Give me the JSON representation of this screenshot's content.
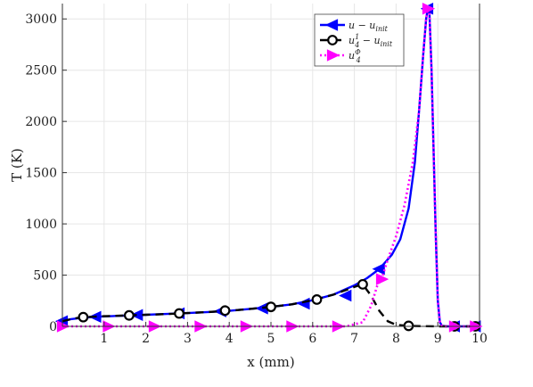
{
  "chart_data": {
    "type": "line",
    "title": "",
    "xlabel": "x (mm)",
    "ylabel": "T (K)",
    "xlim": [
      0,
      10
    ],
    "ylim": [
      0,
      3150
    ],
    "xticks": [
      0,
      1,
      2,
      3,
      4,
      5,
      6,
      7,
      8,
      9,
      10
    ],
    "yticks": [
      0,
      500,
      1000,
      1500,
      2000,
      2500,
      3000
    ],
    "xtick_labels": [
      "0",
      "1",
      "2",
      "3",
      "4",
      "5",
      "6",
      "7",
      "8",
      "9",
      "10"
    ],
    "ytick_labels": [
      "0",
      "500",
      "1000",
      "1500",
      "2000",
      "2500",
      "3000"
    ],
    "grid": true,
    "legend_position": "top-right",
    "series": [
      {
        "name": "u − u_init",
        "legend_parts": {
          "base": "u − u",
          "sub": "init",
          "sup": ""
        },
        "color": "#0000ff",
        "line_style": "solid",
        "marker": "triangle-left",
        "x": [
          0,
          0.2,
          0.4,
          0.6,
          0.8,
          1.0,
          1.5,
          2.0,
          2.5,
          3.0,
          3.5,
          4.0,
          4.5,
          5.0,
          5.5,
          6.0,
          6.5,
          7.0,
          7.3,
          7.6,
          7.9,
          8.1,
          8.3,
          8.45,
          8.55,
          8.65,
          8.72,
          8.76,
          8.8,
          8.85,
          8.9,
          8.95,
          9.0,
          9.05,
          9.1,
          9.2,
          9.4,
          9.7,
          10.0
        ],
        "y": [
          50,
          70,
          80,
          88,
          93,
          97,
          105,
          113,
          121,
          130,
          140,
          152,
          170,
          190,
          215,
          255,
          310,
          400,
          470,
          560,
          700,
          850,
          1150,
          1600,
          2100,
          2650,
          3000,
          3100,
          3050,
          2500,
          1700,
          900,
          250,
          40,
          5,
          0,
          0,
          0,
          0
        ],
        "marker_x": [
          0,
          0.8,
          1.8,
          2.8,
          3.8,
          4.8,
          5.8,
          6.8,
          7.6,
          8.76,
          9.4,
          9.9
        ],
        "marker_y": [
          50,
          93,
          111,
          127,
          147,
          175,
          222,
          300,
          560,
          3100,
          0,
          0
        ]
      },
      {
        "name": "u_4^1 − u_init",
        "legend_parts": {
          "base": "u",
          "sub": "4",
          "sup": "1",
          "suffix": " − u",
          "suffix_sub": "init"
        },
        "color": "#000000",
        "line_style": "dashed",
        "marker": "circle",
        "x": [
          0,
          0.25,
          0.5,
          1.0,
          1.5,
          2.0,
          2.5,
          3.0,
          3.5,
          4.0,
          4.5,
          5.0,
          5.5,
          6.0,
          6.5,
          7.0,
          7.2,
          7.4,
          7.6,
          7.8,
          8.0,
          8.3,
          8.6,
          9.0,
          9.4,
          10.0
        ],
        "y": [
          50,
          75,
          90,
          99,
          106,
          113,
          120,
          130,
          140,
          152,
          170,
          190,
          215,
          255,
          310,
          385,
          410,
          300,
          150,
          50,
          15,
          5,
          2,
          0,
          0,
          0
        ],
        "marker_x": [
          0.5,
          1.6,
          2.8,
          3.9,
          5.0,
          6.1,
          7.2,
          8.3,
          9.4,
          9.9
        ],
        "marker_y": [
          90,
          107,
          126,
          154,
          190,
          262,
          410,
          5,
          0,
          0
        ]
      },
      {
        "name": "u_4^Φ",
        "legend_parts": {
          "base": "u",
          "sub": "4",
          "sup": "Φ"
        },
        "color": "#ff00ff",
        "line_style": "dotted",
        "marker": "triangle-right",
        "x": [
          0,
          1,
          2,
          3,
          4,
          5,
          6,
          6.8,
          7.2,
          7.4,
          7.55,
          7.65,
          7.8,
          8.0,
          8.2,
          8.4,
          8.55,
          8.65,
          8.72,
          8.76,
          8.8,
          8.85,
          8.9,
          8.95,
          9.0,
          9.05,
          9.1,
          9.2,
          9.4,
          9.7,
          10.0
        ],
        "y": [
          0,
          0,
          0,
          0,
          0,
          0,
          0,
          0,
          40,
          200,
          400,
          460,
          650,
          880,
          1180,
          1600,
          2100,
          2650,
          3000,
          3100,
          3050,
          2500,
          1700,
          900,
          250,
          40,
          5,
          0,
          0,
          0,
          0
        ],
        "marker_x": [
          0,
          1.1,
          2.2,
          3.3,
          4.4,
          5.5,
          6.6,
          7.65,
          8.76,
          9.4,
          9.9
        ],
        "marker_y": [
          0,
          0,
          0,
          0,
          0,
          0,
          0,
          460,
          3100,
          0,
          0
        ]
      }
    ]
  }
}
